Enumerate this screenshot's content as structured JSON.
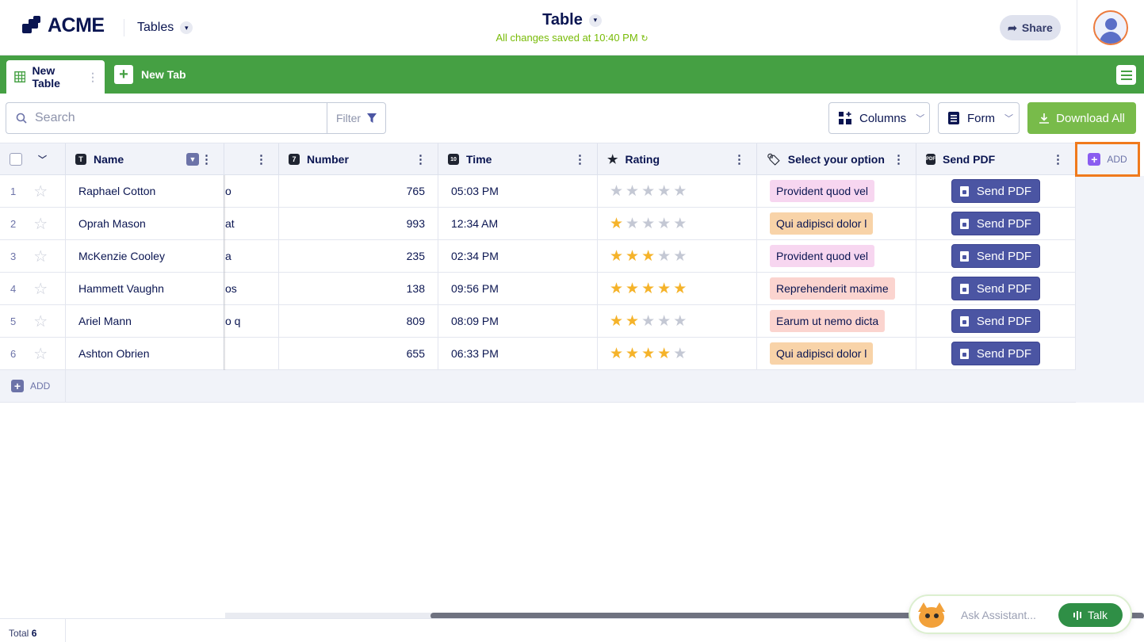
{
  "brand": {
    "name": "ACME"
  },
  "header": {
    "section": "Tables",
    "title": "Table",
    "saved_status": "All changes saved at 10:40 PM",
    "share_label": "Share"
  },
  "tabs": {
    "active_label": "New Table",
    "new_tab_label": "New Tab"
  },
  "toolbar": {
    "search_placeholder": "Search",
    "filter_label": "Filter",
    "columns_label": "Columns",
    "form_label": "Form",
    "download_label": "Download All"
  },
  "columns": {
    "name": "Name",
    "number": "Number",
    "time": "Time",
    "rating": "Rating",
    "select": "Select your option",
    "send_pdf": "Send PDF",
    "add": "ADD"
  },
  "rows": [
    {
      "num": "1",
      "name": "Raphael Cotton",
      "partial": "o",
      "number": "765",
      "time": "05:03 PM",
      "rating": 0,
      "option": "Provident quod vel",
      "option_color": "#f7d6f0",
      "pdf": "Send PDF"
    },
    {
      "num": "2",
      "name": "Oprah Mason",
      "partial": "at",
      "number": "993",
      "time": "12:34 AM",
      "rating": 1,
      "option": "Qui adipisci dolor l",
      "option_color": "#f8d3a8",
      "pdf": "Send PDF"
    },
    {
      "num": "3",
      "name": "McKenzie Cooley",
      "partial": "a",
      "number": "235",
      "time": "02:34 PM",
      "rating": 3,
      "option": "Provident quod vel",
      "option_color": "#f7d6f0",
      "pdf": "Send PDF"
    },
    {
      "num": "4",
      "name": "Hammett Vaughn",
      "partial": "os",
      "number": "138",
      "time": "09:56 PM",
      "rating": 5,
      "option": "Reprehenderit maxime",
      "option_color": "#fbd4cf",
      "pdf": "Send PDF"
    },
    {
      "num": "5",
      "name": "Ariel Mann",
      "partial": "o q",
      "number": "809",
      "time": "08:09 PM",
      "rating": 2,
      "option": "Earum ut nemo dicta",
      "option_color": "#fbd4cf",
      "pdf": "Send PDF"
    },
    {
      "num": "6",
      "name": "Ashton Obrien",
      "partial": "",
      "number": "655",
      "time": "06:33 PM",
      "rating": 4,
      "option": "Qui adipisci dolor l",
      "option_color": "#f8d3a8",
      "pdf": "Send PDF"
    }
  ],
  "add_row_label": "ADD",
  "footer": {
    "total_label": "Total",
    "total_count": "6"
  },
  "assistant": {
    "placeholder": "Ask Assistant...",
    "talk_label": "Talk"
  },
  "colors": {
    "tab_green": "#45a043",
    "download_green": "#78bb4a",
    "send_pdf": "#4b55a3",
    "add_highlight": "#f07a1c",
    "star_on": "#f5b32a"
  }
}
